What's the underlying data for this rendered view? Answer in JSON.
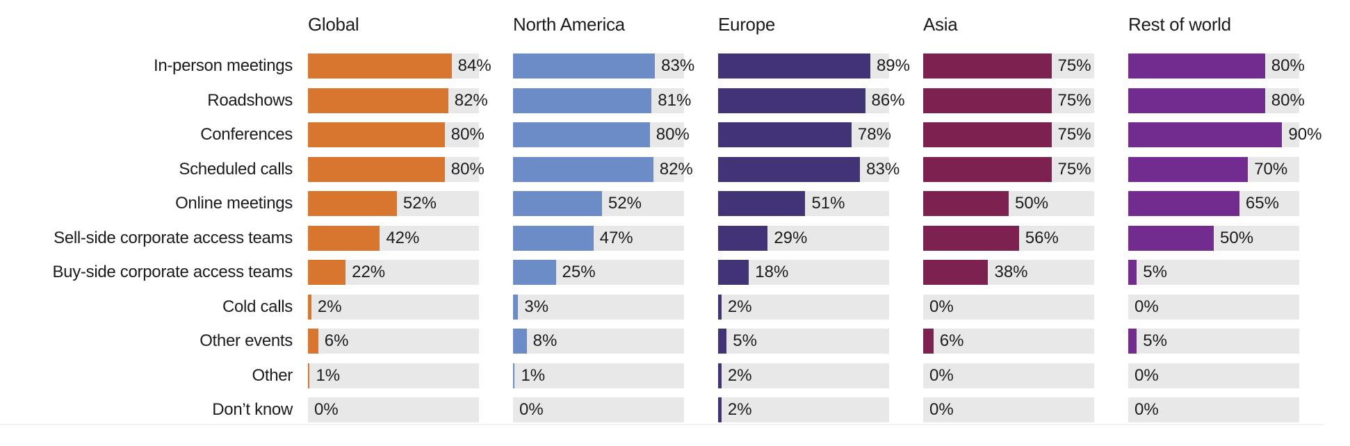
{
  "chart_data": {
    "type": "bar",
    "orientation": "horizontal",
    "unit": "%",
    "xlim": [
      0,
      100
    ],
    "grid": false,
    "legend_position": "column-headers-top",
    "track_color": "#E8E8E8",
    "categories": [
      "In-person meetings",
      "Roadshows",
      "Conferences",
      "Scheduled calls",
      "Online meetings",
      "Sell-side corporate access teams",
      "Buy-side corporate access teams",
      "Cold calls",
      "Other events",
      "Other",
      "Don’t know"
    ],
    "series": [
      {
        "name": "Global",
        "color": "#D8762F",
        "values": [
          84,
          82,
          80,
          80,
          52,
          42,
          22,
          2,
          6,
          1,
          0
        ]
      },
      {
        "name": "North America",
        "color": "#6C8CC8",
        "values": [
          83,
          81,
          80,
          82,
          52,
          47,
          25,
          3,
          8,
          1,
          0
        ]
      },
      {
        "name": "Europe",
        "color": "#423377",
        "values": [
          89,
          86,
          78,
          83,
          51,
          29,
          18,
          2,
          5,
          2,
          2
        ]
      },
      {
        "name": "Asia",
        "color": "#7C2150",
        "values": [
          75,
          75,
          75,
          75,
          50,
          56,
          38,
          0,
          6,
          0,
          0
        ]
      },
      {
        "name": "Rest of world",
        "color": "#722B8E",
        "values": [
          80,
          80,
          90,
          70,
          65,
          50,
          5,
          0,
          5,
          0,
          0
        ]
      }
    ]
  }
}
